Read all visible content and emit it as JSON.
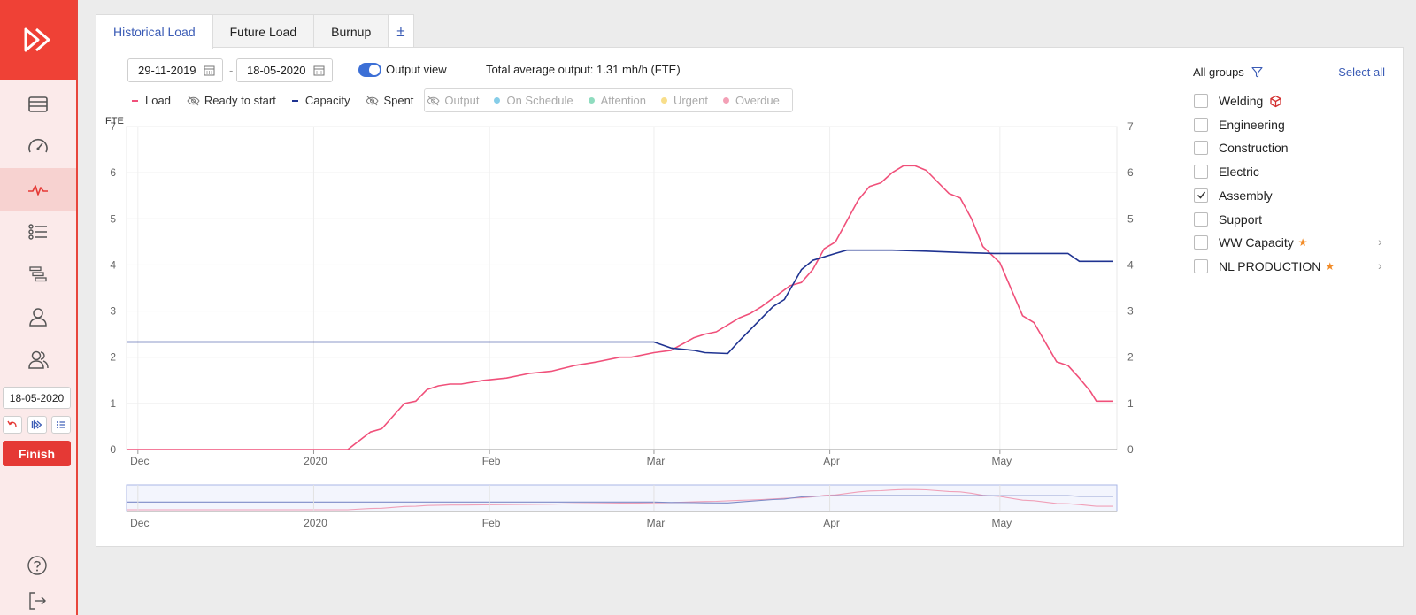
{
  "sidebar": {
    "date": "18-05-2020",
    "finish_label": "Finish"
  },
  "tabs": [
    {
      "label": "Historical Load"
    },
    {
      "label": "Future Load"
    },
    {
      "label": "Burnup"
    },
    {
      "label": "±"
    }
  ],
  "toolbar": {
    "start_date": "29-11-2019",
    "end_date": "18-05-2020",
    "date_separator": "-",
    "output_view_label": "Output view",
    "output_view_on": true,
    "total_output": "Total average output: 1.31 mh/h (FTE)"
  },
  "legend": {
    "load": "Load",
    "ready": "Ready to start",
    "capacity": "Capacity",
    "spent": "Spent",
    "output": "Output",
    "on_schedule": "On Schedule",
    "attention": "Attention",
    "urgent": "Urgent",
    "overdue": "Overdue"
  },
  "colors": {
    "load": "#f0507a",
    "capacity": "#1f3391",
    "on_schedule": "#86cde8",
    "attention": "#8fdcbf",
    "urgent": "#f8de8a",
    "overdue": "#f3a0b6",
    "accent": "#3a5bb5"
  },
  "chart_data": {
    "type": "line",
    "ylabel": "FTE",
    "ylim": [
      0,
      7
    ],
    "yticks": [
      "0",
      "1",
      "2",
      "3",
      "4",
      "5",
      "6",
      "7"
    ],
    "xlim": [
      "2019-11-29",
      "2020-05-18"
    ],
    "xticks": [
      {
        "label": "Dec",
        "date": "2019-12-01"
      },
      {
        "label": "2020",
        "date": "2020-01-01"
      },
      {
        "label": "Feb",
        "date": "2020-02-01"
      },
      {
        "label": "Mar",
        "date": "2020-03-01"
      },
      {
        "label": "Apr",
        "date": "2020-04-01"
      },
      {
        "label": "May",
        "date": "2020-05-01"
      }
    ],
    "grid": true,
    "series": [
      {
        "name": "Load",
        "points": [
          [
            "2019-11-29",
            0
          ],
          [
            "2020-01-07",
            0
          ],
          [
            "2020-01-11",
            0.38
          ],
          [
            "2020-01-13",
            0.45
          ],
          [
            "2020-01-17",
            1.0
          ],
          [
            "2020-01-19",
            1.05
          ],
          [
            "2020-01-21",
            1.3
          ],
          [
            "2020-01-23",
            1.38
          ],
          [
            "2020-01-25",
            1.42
          ],
          [
            "2020-01-27",
            1.42
          ],
          [
            "2020-01-31",
            1.5
          ],
          [
            "2020-02-04",
            1.55
          ],
          [
            "2020-02-08",
            1.65
          ],
          [
            "2020-02-12",
            1.7
          ],
          [
            "2020-02-16",
            1.82
          ],
          [
            "2020-02-20",
            1.9
          ],
          [
            "2020-02-24",
            2.0
          ],
          [
            "2020-02-26",
            2.0
          ],
          [
            "2020-03-01",
            2.1
          ],
          [
            "2020-03-04",
            2.15
          ],
          [
            "2020-03-08",
            2.42
          ],
          [
            "2020-03-10",
            2.5
          ],
          [
            "2020-03-12",
            2.55
          ],
          [
            "2020-03-16",
            2.85
          ],
          [
            "2020-03-18",
            2.95
          ],
          [
            "2020-03-20",
            3.1
          ],
          [
            "2020-03-25",
            3.55
          ],
          [
            "2020-03-27",
            3.62
          ],
          [
            "2020-03-29",
            3.9
          ],
          [
            "2020-03-31",
            4.35
          ],
          [
            "2020-04-02",
            4.5
          ],
          [
            "2020-04-06",
            5.4
          ],
          [
            "2020-04-08",
            5.7
          ],
          [
            "2020-04-10",
            5.78
          ],
          [
            "2020-04-12",
            6.0
          ],
          [
            "2020-04-14",
            6.15
          ],
          [
            "2020-04-16",
            6.15
          ],
          [
            "2020-04-18",
            6.05
          ],
          [
            "2020-04-22",
            5.55
          ],
          [
            "2020-04-24",
            5.45
          ],
          [
            "2020-04-26",
            5.0
          ],
          [
            "2020-04-28",
            4.4
          ],
          [
            "2020-05-01",
            4.05
          ],
          [
            "2020-05-05",
            2.9
          ],
          [
            "2020-05-07",
            2.75
          ],
          [
            "2020-05-11",
            1.9
          ],
          [
            "2020-05-13",
            1.82
          ],
          [
            "2020-05-15",
            1.55
          ],
          [
            "2020-05-17",
            1.25
          ],
          [
            "2020-05-18",
            1.05
          ],
          [
            "2020-05-21",
            1.05
          ]
        ]
      },
      {
        "name": "Capacity",
        "points": [
          [
            "2019-11-29",
            2.33
          ],
          [
            "2020-03-01",
            2.33
          ],
          [
            "2020-03-04",
            2.2
          ],
          [
            "2020-03-08",
            2.15
          ],
          [
            "2020-03-10",
            2.1
          ],
          [
            "2020-03-14",
            2.08
          ],
          [
            "2020-03-16",
            2.35
          ],
          [
            "2020-03-22",
            3.1
          ],
          [
            "2020-03-24",
            3.25
          ],
          [
            "2020-03-27",
            3.9
          ],
          [
            "2020-03-29",
            4.1
          ],
          [
            "2020-04-02",
            4.25
          ],
          [
            "2020-04-04",
            4.32
          ],
          [
            "2020-04-12",
            4.32
          ],
          [
            "2020-04-18",
            4.3
          ],
          [
            "2020-04-24",
            4.27
          ],
          [
            "2020-04-30",
            4.25
          ],
          [
            "2020-05-01",
            4.25
          ],
          [
            "2020-05-10",
            4.25
          ],
          [
            "2020-05-13",
            4.25
          ],
          [
            "2020-05-15",
            4.08
          ],
          [
            "2020-05-21",
            4.08
          ]
        ]
      }
    ]
  },
  "groups": {
    "header": "All groups",
    "select_all": "Select all",
    "items": [
      {
        "label": "Welding",
        "checked": false,
        "badge": "cube-icon"
      },
      {
        "label": "Engineering",
        "checked": false
      },
      {
        "label": "Construction",
        "checked": false
      },
      {
        "label": "Electric",
        "checked": false
      },
      {
        "label": "Assembly",
        "checked": true
      },
      {
        "label": "Support",
        "checked": false
      },
      {
        "label": "WW Capacity",
        "checked": false,
        "star": "★",
        "expandable": true
      },
      {
        "label": "NL PRODUCTION",
        "checked": false,
        "star": "★",
        "expandable": true
      }
    ]
  }
}
